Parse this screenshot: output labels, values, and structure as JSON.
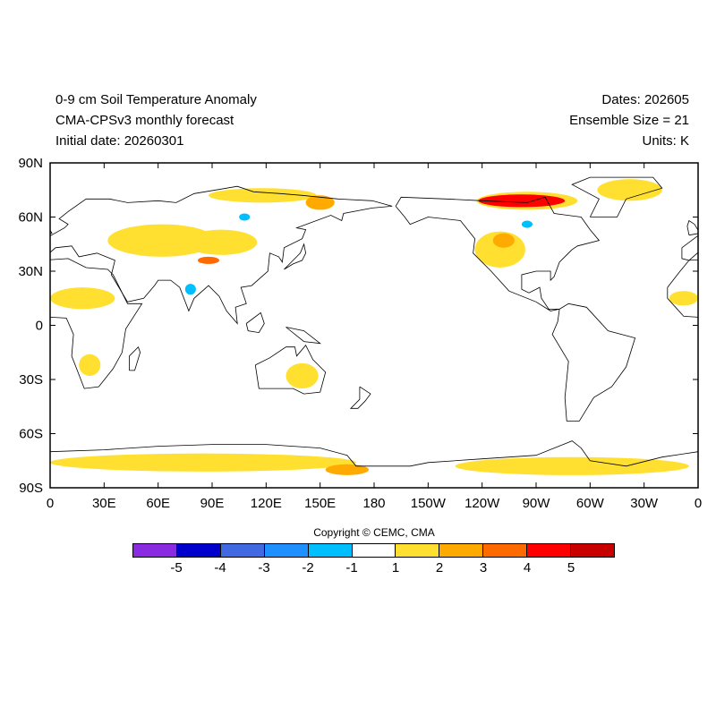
{
  "header": {
    "left": [
      "0-9 cm Soil Temperature Anomaly",
      "CMA-CPSv3 monthly forecast",
      "Initial date: 20260301"
    ],
    "right": [
      "Dates: 202605",
      "Ensemble Size = 21",
      "Units: K"
    ]
  },
  "axes": {
    "lat_labels": [
      {
        "lat": 90,
        "label": "90N"
      },
      {
        "lat": 60,
        "label": "60N"
      },
      {
        "lat": 30,
        "label": "30N"
      },
      {
        "lat": 0,
        "label": "0"
      },
      {
        "lat": -30,
        "label": "30S"
      },
      {
        "lat": -60,
        "label": "60S"
      },
      {
        "lat": -90,
        "label": "90S"
      }
    ],
    "lon_labels": [
      {
        "lon": 0,
        "label": "0"
      },
      {
        "lon": 30,
        "label": "30E"
      },
      {
        "lon": 60,
        "label": "60E"
      },
      {
        "lon": 90,
        "label": "90E"
      },
      {
        "lon": 120,
        "label": "120E"
      },
      {
        "lon": 150,
        "label": "150E"
      },
      {
        "lon": 180,
        "label": "180"
      },
      {
        "lon": 210,
        "label": "150W"
      },
      {
        "lon": 240,
        "label": "120W"
      },
      {
        "lon": 270,
        "label": "90W"
      },
      {
        "lon": 300,
        "label": "60W"
      },
      {
        "lon": 330,
        "label": "30W"
      },
      {
        "lon": 360,
        "label": "0"
      }
    ]
  },
  "copyright": "Copyright © CEMC, CMA",
  "colorbar": {
    "colors": [
      "#8a2be2",
      "#0000cd",
      "#4169e1",
      "#1e90ff",
      "#00bfff",
      "#ffffff",
      "#ffe030",
      "#ffaa00",
      "#ff6a00",
      "#ff0000",
      "#c80000"
    ],
    "labels": [
      "-5",
      "-4",
      "-3",
      "-2",
      "-1",
      "1",
      "2",
      "3",
      "4",
      "5"
    ]
  },
  "chart_data": {
    "type": "map",
    "variable": "0-9 cm Soil Temperature Anomaly",
    "units": "K",
    "lon_range": [
      0,
      360
    ],
    "lat_range": [
      -90,
      90
    ],
    "anomaly_regions": [
      {
        "name": "central-asia",
        "lon": 62,
        "lat": 47,
        "dlon": 30,
        "dlat": 9,
        "level": 1.5
      },
      {
        "name": "mongolia",
        "lon": 95,
        "lat": 46,
        "dlon": 20,
        "dlat": 7,
        "level": 1.5
      },
      {
        "name": "tibet",
        "lon": 88,
        "lat": 36,
        "dlon": 6,
        "dlat": 2,
        "level": 3.5
      },
      {
        "name": "north-siberia",
        "lon": 118,
        "lat": 72,
        "dlon": 30,
        "dlat": 4,
        "level": 1.5
      },
      {
        "name": "east-siberia",
        "lon": 150,
        "lat": 68,
        "dlon": 8,
        "dlat": 4,
        "level": 2.5
      },
      {
        "name": "canadian-arctic",
        "lon": 265,
        "lat": 69,
        "dlon": 28,
        "dlat": 5,
        "level": 1.5
      },
      {
        "name": "canadian-arctic-core",
        "lon": 262,
        "lat": 69,
        "dlon": 24,
        "dlat": 3.5,
        "level": 4.5
      },
      {
        "name": "western-us",
        "lon": 250,
        "lat": 42,
        "dlon": 14,
        "dlat": 10,
        "level": 1.5
      },
      {
        "name": "western-us-core",
        "lon": 252,
        "lat": 47,
        "dlon": 6,
        "dlat": 4,
        "level": 2.5
      },
      {
        "name": "greenland",
        "lon": 322,
        "lat": 75,
        "dlon": 18,
        "dlat": 6,
        "level": 1.5
      },
      {
        "name": "sahel",
        "lon": 18,
        "lat": 15,
        "dlon": 18,
        "dlat": 6,
        "level": 1.5
      },
      {
        "name": "west-africa",
        "lon": 352,
        "lat": 15,
        "dlon": 8,
        "dlat": 4,
        "level": 1.5
      },
      {
        "name": "southern-africa",
        "lon": 22,
        "lat": -22,
        "dlon": 6,
        "dlat": 6,
        "level": 1.5
      },
      {
        "name": "australia",
        "lon": 140,
        "lat": -28,
        "dlon": 9,
        "dlat": 7,
        "level": 1.5
      },
      {
        "name": "antarctica-east",
        "lon": 85,
        "lat": -76,
        "dlon": 85,
        "dlat": 5,
        "level": 1.5
      },
      {
        "name": "antarctica-ross",
        "lon": 165,
        "lat": -80,
        "dlon": 12,
        "dlat": 3,
        "level": 2.5
      },
      {
        "name": "antarctica-west",
        "lon": 290,
        "lat": -78,
        "dlon": 65,
        "dlat": 5,
        "level": 1.5
      },
      {
        "name": "india-cold",
        "lon": 78,
        "lat": 20,
        "dlon": 3,
        "dlat": 3,
        "level": -1.5
      },
      {
        "name": "siberia-cold",
        "lon": 108,
        "lat": 60,
        "dlon": 3,
        "dlat": 2,
        "level": -1.5
      },
      {
        "name": "canada-cold",
        "lon": 265,
        "lat": 56,
        "dlon": 3,
        "dlat": 2,
        "level": -1.5
      }
    ]
  }
}
